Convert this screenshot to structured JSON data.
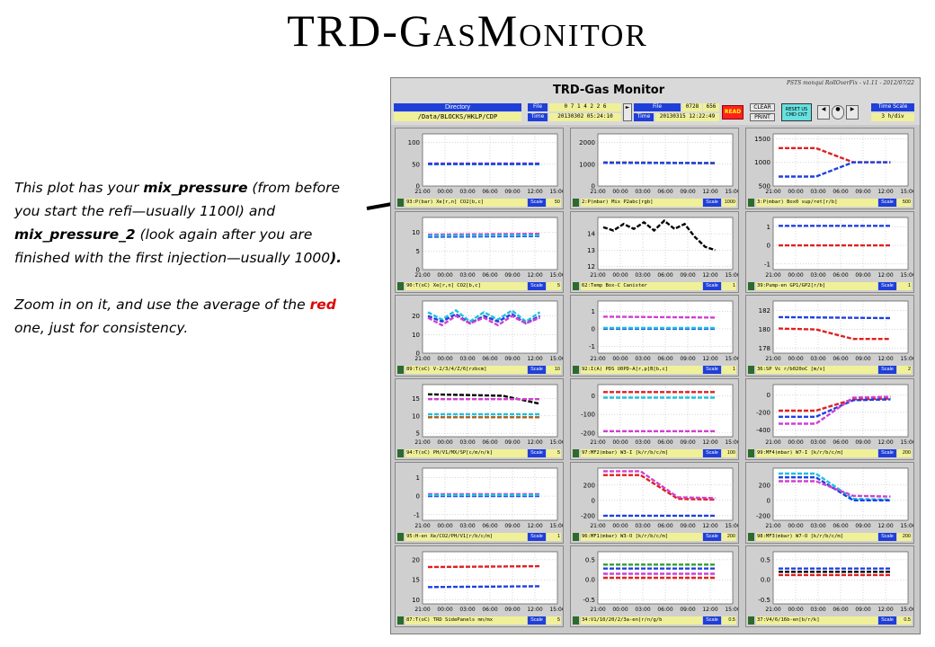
{
  "page_title": "TRD-GasMonitor",
  "notes": {
    "p1_a": "This plot has your ",
    "p1_b": "mix_pressure",
    "p1_c": " (from before you start the refi—usually 1100l) and ",
    "p1_d": "mix_pressure_2",
    "p1_e": " (look again after you are finished with the first injection—usually 1000",
    "p1_f": ").",
    "p2_a": " Zoom in on it, and use the average of the ",
    "p2_b": "red",
    "p2_c": " one, just for consistency."
  },
  "monitor": {
    "title": "TRD-Gas Monitor",
    "version": "PSTS monqui RollOverFix - v1.11 - 2012/07/22",
    "directory_label": "Directory",
    "directory_value": "/Data/BLOCKS/HKLP/CDP",
    "file_label": "File",
    "time_label": "Time",
    "file1_digits": "0 7 1 4 2 2 6",
    "time1_value": "20130302 05:24:10",
    "file2_label": "File",
    "file2_value": "0728",
    "file2_extra": "656",
    "time2_value": "20130315 12:22:49",
    "read_label": "READ",
    "clear_label": "CLEAR",
    "print_label": "PRINT",
    "reset_label": "RESET US CMD CNT",
    "timescale_label": "Time Scale",
    "timescale_value": "3 h/div",
    "scale_label": "Scale"
  },
  "panels": [
    {
      "label": "93:P(bar) Xe[r,n] CO2[b,c]",
      "scale": "50",
      "yticks": [
        "100",
        "50",
        "0"
      ],
      "ylim": [
        0,
        120
      ],
      "series": [
        {
          "color": "#d040d0",
          "y": [
            52,
            52
          ]
        },
        {
          "color": "#20c0e0",
          "y": [
            50,
            50
          ]
        },
        {
          "color": "#2040e0",
          "y": [
            51,
            51
          ]
        }
      ]
    },
    {
      "label": "2:P(mbar) Mix P2abc[rgb]",
      "scale": "1000",
      "yticks": [
        "2000",
        "1000",
        "0"
      ],
      "ylim": [
        0,
        2400
      ],
      "series": [
        {
          "color": "#e02020",
          "y": [
            1090,
            1060
          ]
        },
        {
          "color": "#30a030",
          "y": [
            1080,
            1055
          ]
        },
        {
          "color": "#2040e0",
          "y": [
            1070,
            1050
          ]
        }
      ]
    },
    {
      "label": "3:P(mbar) Box0 sup/ret[r/b]",
      "scale": "500",
      "yticks": [
        "1500",
        "1000",
        "500"
      ],
      "ylim": [
        500,
        1600
      ],
      "series": [
        {
          "color": "#e02020",
          "y": [
            1300,
            1300,
            1000,
            1000
          ]
        },
        {
          "color": "#2040e0",
          "y": [
            700,
            700,
            1000,
            1000
          ]
        }
      ]
    },
    {
      "label": "90:T(oC) Xe[r,n] CO2[b,c]",
      "scale": "5",
      "yticks": [
        "10",
        "5",
        "0"
      ],
      "ylim": [
        0,
        14
      ],
      "series": [
        {
          "color": "#d040d0",
          "y": [
            9.4,
            9.6
          ]
        },
        {
          "color": "#2040e0",
          "y": [
            8.8,
            9.0
          ]
        },
        {
          "color": "#20c0e0",
          "y": [
            9.1,
            9.2
          ]
        }
      ]
    },
    {
      "label": "62:Temp Box-C Canister",
      "scale": "1",
      "yticks": [
        "14",
        "13",
        "12"
      ],
      "ylim": [
        11.8,
        15
      ],
      "series": [
        {
          "color": "#000000",
          "y": [
            14.4,
            14.2,
            14.6,
            14.3,
            14.7,
            14.2,
            14.8,
            14.3,
            14.6,
            13.8,
            13.2,
            13.0
          ]
        }
      ]
    },
    {
      "label": "39:Pump-en GP1/GP2[r/b]",
      "scale": "1",
      "yticks": [
        "1",
        "0",
        "-1"
      ],
      "ylim": [
        -1.3,
        1.5
      ],
      "series": [
        {
          "color": "#2040e0",
          "y": [
            1.05,
            1.05
          ]
        },
        {
          "color": "#e02020",
          "y": [
            0.0,
            0.0
          ]
        }
      ]
    },
    {
      "label": "89:T(oC) V-2/3/4/Z/6[rzbcm]",
      "scale": "10",
      "yticks": [
        "20",
        "10",
        "0"
      ],
      "ylim": [
        0,
        28
      ],
      "series": [
        {
          "color": "#20c0e0",
          "y": [
            22,
            18,
            23,
            17,
            22,
            18,
            23,
            17,
            22
          ]
        },
        {
          "color": "#2040e0",
          "y": [
            20,
            17,
            21,
            16,
            20,
            17,
            21,
            16,
            20
          ]
        },
        {
          "color": "#d040d0",
          "y": [
            19,
            15,
            20,
            16,
            19,
            15,
            20,
            16,
            19
          ]
        }
      ]
    },
    {
      "label": "92:I(A) PDS U0PD-A[r,p]B[b,c]",
      "scale": "1",
      "yticks": [
        "1",
        "0",
        "-1"
      ],
      "ylim": [
        -1.4,
        1.6
      ],
      "series": [
        {
          "color": "#d040d0",
          "y": [
            0.7,
            0.65
          ]
        },
        {
          "color": "#2040e0",
          "y": [
            0.0,
            0.0
          ]
        },
        {
          "color": "#20c0e0",
          "y": [
            0.05,
            0.05
          ]
        }
      ]
    },
    {
      "label": "36:SP Vc r/b020oC [m/s]",
      "scale": "2",
      "yticks": [
        "182",
        "180",
        "178"
      ],
      "ylim": [
        177.5,
        183
      ],
      "series": [
        {
          "color": "#2040e0",
          "y": [
            181.3,
            181.2
          ]
        },
        {
          "color": "#e02020",
          "y": [
            180.1,
            180.0,
            179.0,
            179.0
          ]
        }
      ]
    },
    {
      "label": "94:T(oC) PH/V1/MX/SP[c/m/n/k]",
      "scale": "5",
      "yticks": [
        "15",
        "10",
        "5"
      ],
      "ylim": [
        4,
        19
      ],
      "series": [
        {
          "color": "#000000",
          "y": [
            16.2,
            16.0,
            15.8,
            13.5
          ]
        },
        {
          "color": "#d040d0",
          "y": [
            14.8,
            14.8
          ]
        },
        {
          "color": "#20c0e0",
          "y": [
            10.5,
            10.5
          ]
        },
        {
          "color": "#a06020",
          "y": [
            9.6,
            9.6
          ]
        }
      ]
    },
    {
      "label": "97:MF2(mbar) W3-I [k/r/b/c/m]",
      "scale": "100",
      "yticks": [
        "0",
        "-100",
        "-200"
      ],
      "ylim": [
        -220,
        60
      ],
      "series": [
        {
          "color": "#d040d0",
          "y": [
            -190,
            -190
          ]
        },
        {
          "color": "#e02020",
          "y": [
            20,
            20
          ]
        },
        {
          "color": "#20c0e0",
          "y": [
            -10,
            -10
          ]
        }
      ]
    },
    {
      "label": "99:MF4(mbar) W7-I [k/r/b/c/m]",
      "scale": "200",
      "yticks": [
        "0",
        "-200",
        "-400"
      ],
      "ylim": [
        -480,
        120
      ],
      "series": [
        {
          "color": "#e02020",
          "y": [
            -180,
            -180,
            -50,
            -40
          ]
        },
        {
          "color": "#2040e0",
          "y": [
            -250,
            -250,
            -60,
            -50
          ]
        },
        {
          "color": "#d040d0",
          "y": [
            -330,
            -330,
            -30,
            -20
          ]
        }
      ]
    },
    {
      "label": "95:H-en Xe/CO2/PH/V1[r/b/c/m]",
      "scale": "1",
      "yticks": [
        "1",
        "0",
        "-1"
      ],
      "ylim": [
        -1.3,
        1.5
      ],
      "series": [
        {
          "color": "#d040d0",
          "y": [
            0.1,
            0.1
          ]
        },
        {
          "color": "#2040e0",
          "y": [
            0.0,
            0.0
          ]
        },
        {
          "color": "#20c0e0",
          "y": [
            0.05,
            0.05
          ]
        }
      ]
    },
    {
      "label": "96:MF1(mbar) W3-O [k/r/b/c/m]",
      "scale": "200",
      "yticks": [
        "200",
        "0",
        "-200"
      ],
      "ylim": [
        -260,
        420
      ],
      "series": [
        {
          "color": "#e02020",
          "y": [
            330,
            330,
            20,
            10
          ]
        },
        {
          "color": "#d040d0",
          "y": [
            380,
            380,
            40,
            30
          ]
        },
        {
          "color": "#2040e0",
          "y": [
            -200,
            -200
          ]
        }
      ]
    },
    {
      "label": "98:MF3(mbar) W7-O [k/r/b/c/m]",
      "scale": "200",
      "yticks": [
        "200",
        "0",
        "-200"
      ],
      "ylim": [
        -260,
        420
      ],
      "series": [
        {
          "color": "#20c0e0",
          "y": [
            350,
            350,
            20,
            10
          ]
        },
        {
          "color": "#2040e0",
          "y": [
            300,
            300,
            0,
            0
          ]
        },
        {
          "color": "#d040d0",
          "y": [
            250,
            250,
            60,
            50
          ]
        }
      ]
    },
    {
      "label": "87:T(oC) TRD SidePanels mn/mx",
      "scale": "5",
      "yticks": [
        "20",
        "15",
        "10"
      ],
      "ylim": [
        9,
        22
      ],
      "series": [
        {
          "color": "#e02020",
          "y": [
            18.2,
            18.4
          ]
        },
        {
          "color": "#2040e0",
          "y": [
            13.2,
            13.4
          ]
        }
      ]
    },
    {
      "label": "34:V1/10/20/2/3a-en[r/n/g/b",
      "scale": "0.5",
      "yticks": [
        "0.5",
        "0.0",
        "-0.5"
      ],
      "ylim": [
        -0.6,
        0.7
      ],
      "series": [
        {
          "color": "#30a030",
          "y": [
            0.38,
            0.38
          ]
        },
        {
          "color": "#2040e0",
          "y": [
            0.28,
            0.28
          ]
        },
        {
          "color": "#e02020",
          "y": [
            0.05,
            0.05
          ]
        },
        {
          "color": "#d040d0",
          "y": [
            0.15,
            0.15
          ]
        }
      ]
    },
    {
      "label": "37:V4/6/16b-en[b/r/k]",
      "scale": "0.5",
      "yticks": [
        "0.5",
        "0.0",
        "-0.5"
      ],
      "ylim": [
        -0.6,
        0.7
      ],
      "series": [
        {
          "color": "#2040e0",
          "y": [
            0.28,
            0.28
          ]
        },
        {
          "color": "#e02020",
          "y": [
            0.12,
            0.12
          ]
        },
        {
          "color": "#000000",
          "y": [
            0.2,
            0.2
          ]
        }
      ]
    }
  ],
  "xticks": [
    "21:00",
    "00:00",
    "03:00",
    "06:00",
    "09:00",
    "12:00",
    "15:00"
  ],
  "arrow_color": "#000000"
}
